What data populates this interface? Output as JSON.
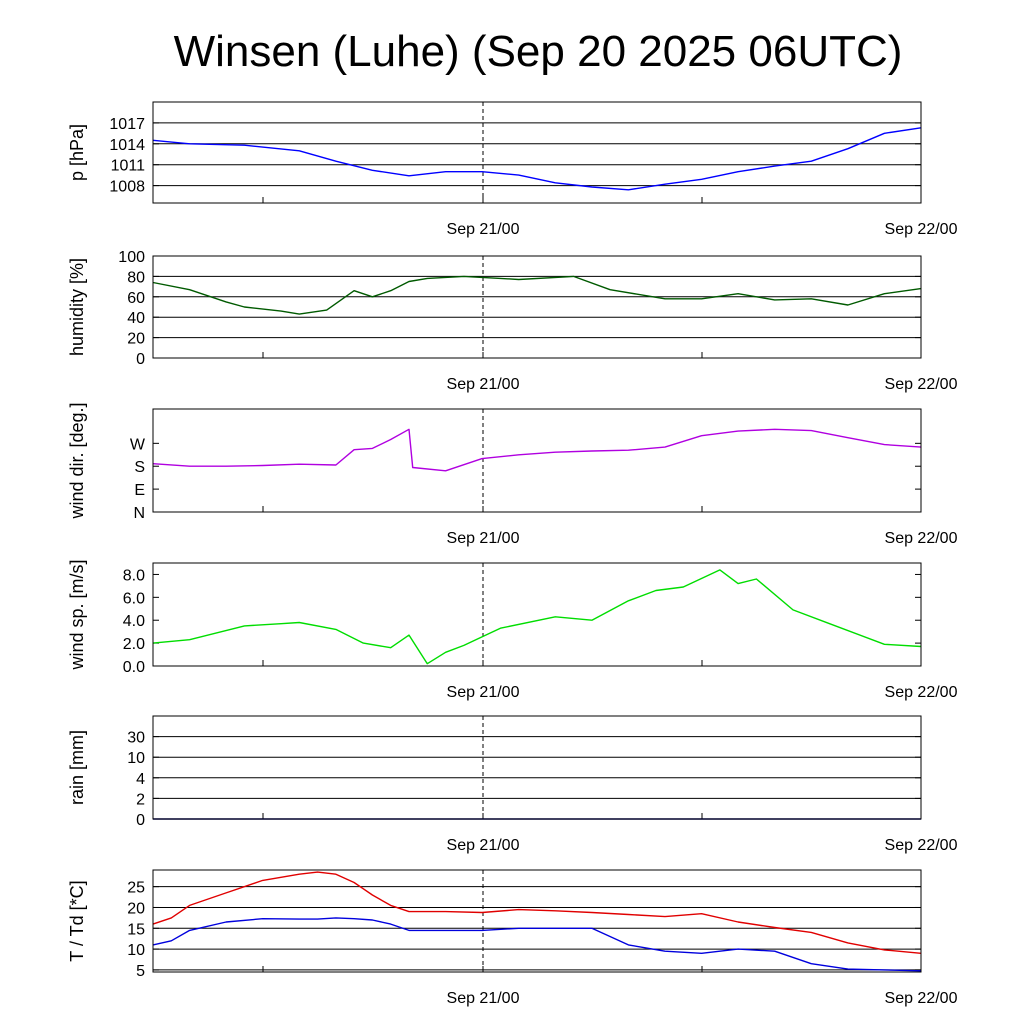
{
  "title": "Winsen (Luhe) (Sep 20 2025 06UTC)",
  "chart_data": [
    {
      "type": "line",
      "ylabel": "p [hPa]",
      "ylim": [
        1005.5,
        1020
      ],
      "yticks": [
        1008,
        1011,
        1014,
        1017
      ],
      "ytick_labels": [
        "1008",
        "1011",
        "1014",
        "1017"
      ],
      "grid": "horizontal",
      "x_tick_labels": [
        "Sep 21/00",
        "Sep 22/00"
      ],
      "x": [
        0,
        2,
        5,
        8,
        10,
        12,
        14,
        16,
        18,
        20,
        22,
        24,
        26,
        28,
        30,
        32,
        34,
        36,
        38,
        40,
        42
      ],
      "series": [
        {
          "color": "#0000ff",
          "values": [
            1014.5,
            1014.0,
            1013.8,
            1013.0,
            1011.5,
            1010.2,
            1009.4,
            1010.0,
            1010.0,
            1009.5,
            1008.4,
            1007.8,
            1007.4,
            1008.2,
            1008.9,
            1010.0,
            1010.8,
            1011.5,
            1013.3,
            1015.5,
            1016.3
          ]
        }
      ]
    },
    {
      "type": "line",
      "ylabel": "humidity [%]",
      "ylim": [
        0,
        100
      ],
      "yticks": [
        0,
        20,
        40,
        60,
        80,
        100
      ],
      "ytick_labels": [
        "0",
        "20",
        "40",
        "60",
        "80",
        "100"
      ],
      "grid": "horizontal",
      "x_tick_labels": [
        "Sep 21/00",
        "Sep 22/00"
      ],
      "x": [
        0,
        2,
        4,
        5,
        7,
        8,
        9.5,
        11,
        12,
        13,
        14,
        15,
        17,
        19,
        20,
        23,
        25,
        28,
        30,
        32,
        34,
        36,
        38,
        40,
        42
      ],
      "series": [
        {
          "color": "#005a00",
          "values": [
            74,
            67,
            55,
            50,
            46,
            43,
            47,
            66,
            60,
            66,
            75,
            78,
            80,
            78,
            77,
            80,
            67,
            58,
            58,
            63,
            57,
            58,
            52,
            63,
            68
          ]
        }
      ]
    },
    {
      "type": "line",
      "ylabel": "wind dir. [deg.]",
      "ylim": [
        0,
        405
      ],
      "yticks": [
        0,
        90,
        180,
        270
      ],
      "ytick_labels": [
        "N",
        "E",
        "S",
        "W"
      ],
      "grid": "none",
      "x_tick_labels": [
        "Sep 21/00",
        "Sep 22/00"
      ],
      "x": [
        0,
        2,
        4,
        6,
        8,
        10,
        11,
        12,
        13,
        14,
        14.2,
        16,
        18,
        20,
        22,
        24,
        26,
        28,
        30,
        32,
        34,
        36,
        38,
        40,
        42
      ],
      "series": [
        {
          "color": "#b000e0",
          "values": [
            190,
            180,
            180,
            183,
            188,
            185,
            245,
            250,
            285,
            325,
            175,
            162,
            210,
            225,
            235,
            240,
            243,
            255,
            300,
            318,
            325,
            320,
            292,
            265,
            255
          ]
        }
      ]
    },
    {
      "type": "line",
      "ylabel": "wind sp. [m/s]",
      "ylim": [
        0,
        9
      ],
      "yticks": [
        0,
        2,
        4,
        6,
        8
      ],
      "ytick_labels": [
        "0.0",
        "2.0",
        "4.0",
        "6.0",
        "8.0"
      ],
      "grid": "none",
      "x_tick_labels": [
        "Sep 21/00",
        "Sep 22/00"
      ],
      "x": [
        0,
        2,
        5,
        7,
        8,
        10,
        11.5,
        13,
        14,
        15,
        16,
        17,
        19,
        22,
        24,
        26,
        27.5,
        29,
        31,
        32,
        33,
        35,
        37,
        40,
        42
      ],
      "series": [
        {
          "color": "#00dd00",
          "values": [
            2.0,
            2.3,
            3.5,
            3.7,
            3.8,
            3.2,
            2.0,
            1.6,
            2.7,
            0.2,
            1.2,
            1.8,
            3.3,
            4.3,
            4.0,
            5.7,
            6.6,
            6.9,
            8.4,
            7.2,
            7.6,
            4.9,
            3.7,
            1.9,
            1.7
          ]
        }
      ]
    },
    {
      "type": "line",
      "ylabel": "rain [mm]",
      "ylim": [
        0,
        5
      ],
      "yticks": [
        0,
        1,
        2,
        3,
        4,
        5
      ],
      "ytick_labels": [
        "0",
        "2",
        "4",
        "10",
        "30",
        ""
      ],
      "grid": "horizontal",
      "x_tick_labels": [
        "Sep 21/00",
        "Sep 22/00"
      ],
      "x": [
        0,
        42
      ],
      "series": [
        {
          "color": "#000080",
          "values": [
            0,
            0
          ]
        }
      ]
    },
    {
      "type": "line",
      "ylabel": "T / Td [*C]",
      "ylim": [
        4.5,
        29
      ],
      "yticks": [
        5,
        10,
        15,
        20,
        25
      ],
      "ytick_labels": [
        "5",
        "10",
        "15",
        "20",
        "25"
      ],
      "grid": "horizontal",
      "x_tick_labels": [
        "Sep 21/00",
        "Sep 22/00"
      ],
      "x": [
        0,
        1,
        2,
        4,
        6,
        8,
        9,
        10,
        11,
        12,
        13,
        14,
        16,
        18,
        20,
        22,
        24,
        26,
        28,
        30,
        32,
        34,
        36,
        38,
        40,
        42
      ],
      "series": [
        {
          "color": "#e00000",
          "values": [
            16,
            17.5,
            20.5,
            23.5,
            26.5,
            28.0,
            28.5,
            28.0,
            26.0,
            23.0,
            20.5,
            19.0,
            19.0,
            18.8,
            19.5,
            19.2,
            18.8,
            18.3,
            17.8,
            18.5,
            16.5,
            15.2,
            14.0,
            11.5,
            9.8,
            9.0
          ]
        },
        {
          "color": "#0000dd",
          "values": [
            11,
            12.0,
            14.5,
            16.5,
            17.3,
            17.2,
            17.2,
            17.5,
            17.3,
            17.0,
            16.0,
            14.5,
            14.5,
            14.5,
            15.0,
            15.0,
            15.0,
            11.0,
            9.5,
            9.0,
            10.0,
            9.5,
            6.5,
            5.2,
            5.0,
            4.8
          ]
        }
      ]
    }
  ]
}
